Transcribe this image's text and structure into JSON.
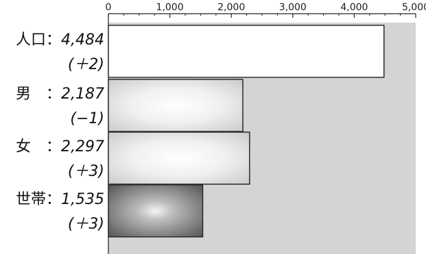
{
  "chart_data": {
    "type": "bar",
    "orientation": "horizontal",
    "xlim": [
      0,
      5000
    ],
    "ticks": [
      0,
      1000,
      2000,
      3000,
      4000,
      5000
    ],
    "tick_labels": [
      "0",
      "1,000",
      "2,000",
      "3,000",
      "4,000",
      "5,000"
    ],
    "categories": [
      {
        "name": "人口",
        "value": 4484,
        "value_label": "4,484",
        "change": "(＋2)",
        "fill": "white"
      },
      {
        "name": "男",
        "value": 2187,
        "value_label": "2,187",
        "change": "(−1)",
        "fill": "light-gradient"
      },
      {
        "name": "女",
        "value": 2297,
        "value_label": "2,297",
        "change": "(＋3)",
        "fill": "light-gradient"
      },
      {
        "name": "世帯",
        "value": 1535,
        "value_label": "1,535",
        "change": "(＋3)",
        "fill": "dark-gradient"
      }
    ],
    "grid": false,
    "legend": "none"
  },
  "colors": {
    "plot_background": "#d4d4d4",
    "bar_outline": "#2a2a2a",
    "bar_white": "#ffffff",
    "dark_bar_center": "#f4f4f4",
    "dark_bar_edge": "#4a4a4a",
    "light_bar_center": "#ffffff",
    "light_bar_edge": "#c6c6c6"
  }
}
